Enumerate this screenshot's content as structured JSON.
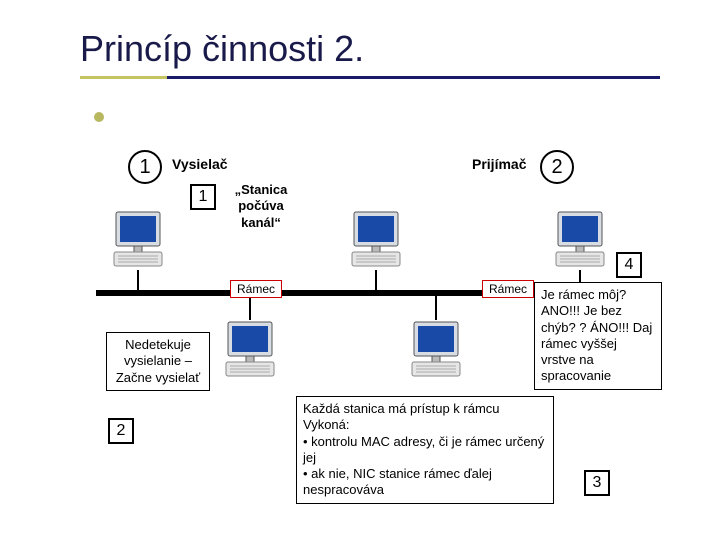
{
  "title": "Princíp činnosti 2.",
  "nodes": {
    "sender_num": "1",
    "sender_label": "Vysielač",
    "receiver_num": "2",
    "receiver_label": "Prijímač",
    "step1_num": "1",
    "step1_text": "„Stanica počúva kanál“",
    "step2_num": "2",
    "step2_text": "Nedetekuje vysielanie – Začne vysielať",
    "step3_num": "3",
    "step3_text": "Každá stanica má prístup k rámcu\nVykoná:\n• kontrolu MAC adresy, či je rámec určený jej\n• ak nie, NIC stanice rámec ďalej nespracováva",
    "step4_num": "4",
    "step4_text": "Je rámec môj? ANO!!!\nJe bez chýb? ? ÁNO!!! Daj rámec vyššej vrstve na spracovanie",
    "frame_left": "Rámec",
    "frame_right": "Rámec"
  },
  "colors": {
    "title": "#1a1a4a",
    "underline_a": "#c4c462",
    "underline_b": "#1a1a6a",
    "frame_border": "#c00",
    "bus": "#000"
  }
}
